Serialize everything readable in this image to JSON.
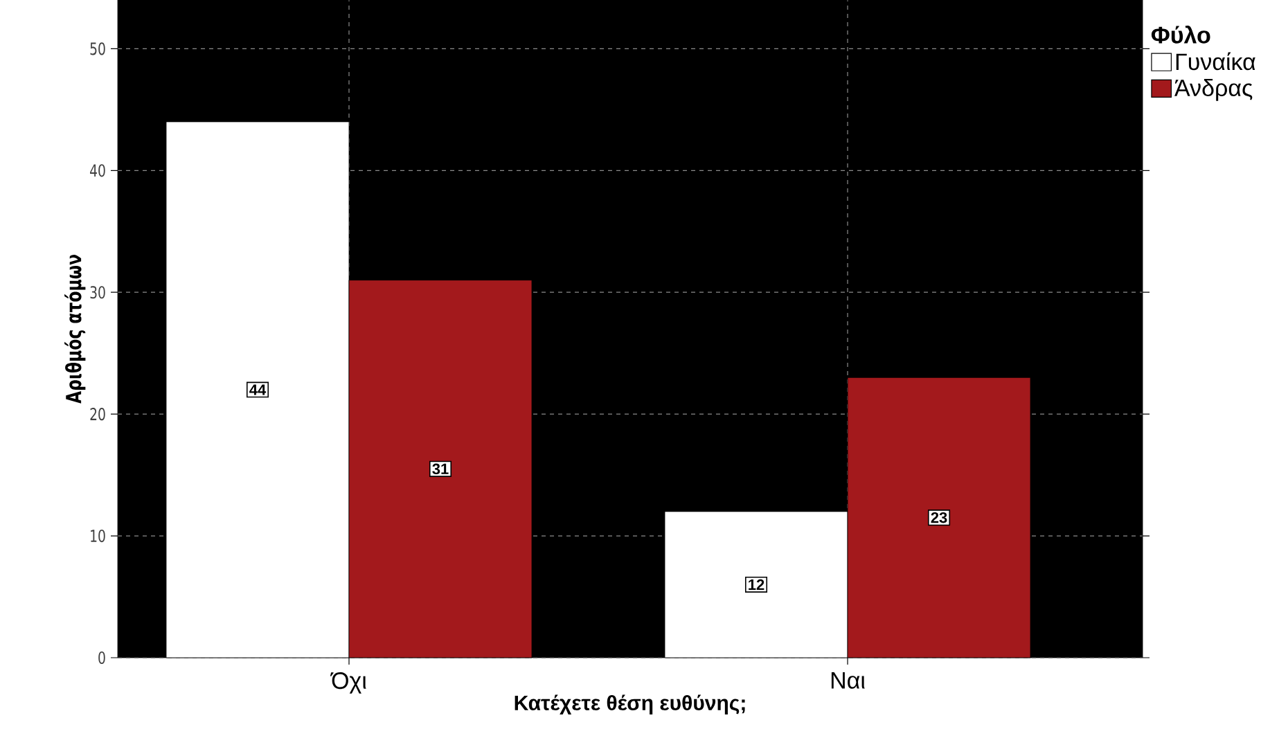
{
  "chart_data": {
    "type": "bar",
    "xlabel": "Κατέχετε θέση ευθύνης;",
    "ylabel": "Αριθμός ατόμων",
    "legend_title": "Φύλο",
    "categories": [
      "Όχι",
      "Ναι"
    ],
    "series": [
      {
        "name": "Γυναίκα",
        "color": "#ffffff",
        "values": [
          44,
          12
        ]
      },
      {
        "name": "Άνδρας",
        "color": "#a3191c",
        "values": [
          31,
          23
        ]
      }
    ],
    "ylim": [
      0,
      54
    ],
    "yticks": [
      0,
      10,
      20,
      30,
      40,
      50
    ],
    "grid": true,
    "legend": "right",
    "data_labels": true
  }
}
